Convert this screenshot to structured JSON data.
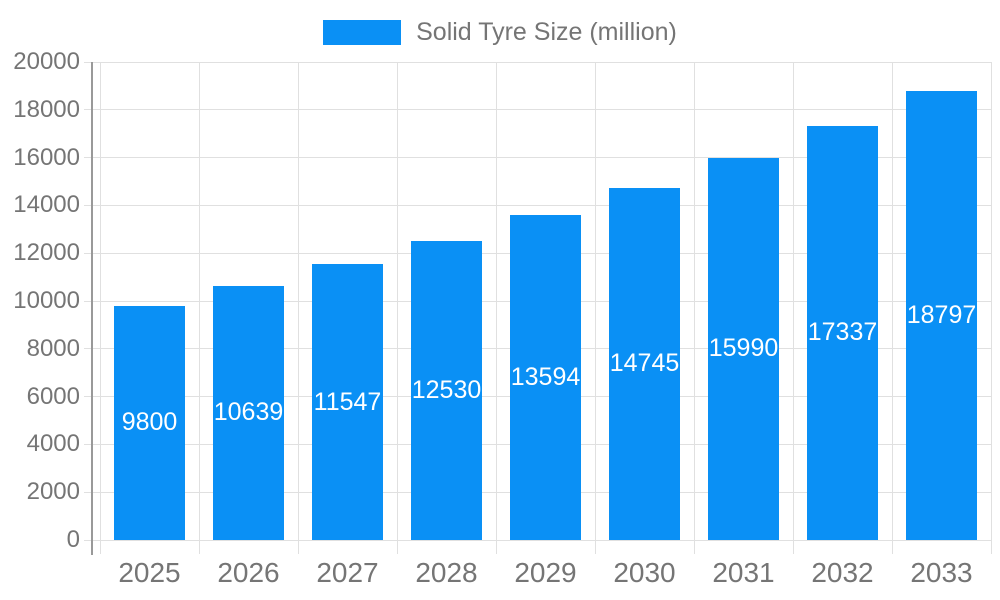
{
  "legend": {
    "label": "Solid Tyre Size (million)"
  },
  "colors": {
    "bar": "#0a90f5",
    "bar_label": "#ffffff",
    "grid": "#e0e0e0",
    "axis_line": "#999999",
    "text": "#757575"
  },
  "chart_data": {
    "type": "bar",
    "title": "Solid Tyre Size (million)",
    "legend_entries": [
      "Solid Tyre Size (million)"
    ],
    "legend_position": "top-center",
    "categories": [
      "2025",
      "2026",
      "2027",
      "2028",
      "2029",
      "2030",
      "2031",
      "2032",
      "2033"
    ],
    "values": [
      9800,
      10639,
      11547,
      12530,
      13594,
      14745,
      15990,
      17337,
      18797
    ],
    "xlabel": "",
    "ylabel": "",
    "ylim": [
      0,
      20000
    ],
    "ytick_step": 2000,
    "ytick_labels": [
      "0",
      "2000",
      "4000",
      "6000",
      "8000",
      "10000",
      "12000",
      "14000",
      "16000",
      "18000",
      "20000"
    ],
    "grid": true,
    "bar_value_labels": "inside-centered-white"
  }
}
